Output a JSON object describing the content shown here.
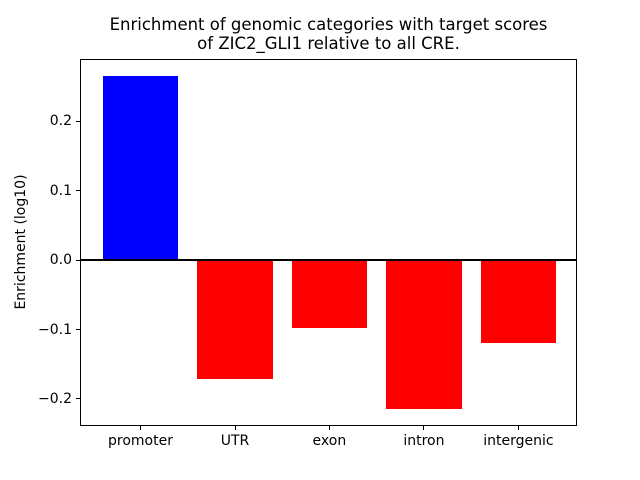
{
  "figure": {
    "background": "#ffffff",
    "title_line1": "Enrichment of genomic categories with target scores",
    "title_line2": "of ZIC2_GLI1 relative to all CRE.",
    "ylabel": "Enrichment (log10)"
  },
  "chart_data": {
    "type": "bar",
    "title": "Enrichment of genomic categories with target scores\nof ZIC2_GLI1 relative to all CRE.",
    "xlabel": "",
    "ylabel": "Enrichment (log10)",
    "categories": [
      "promoter",
      "UTR",
      "exon",
      "intron",
      "intergenic"
    ],
    "values": [
      0.266,
      -0.172,
      -0.098,
      -0.215,
      -0.12
    ],
    "bar_colors": [
      "#0000ff",
      "#ff0000",
      "#ff0000",
      "#ff0000",
      "#ff0000"
    ],
    "positive_color": "#0000ff",
    "negative_color": "#ff0000",
    "yticks": [
      -0.2,
      -0.1,
      0.0,
      0.1,
      0.2
    ],
    "ytick_labels": [
      "−0.2",
      "−0.1",
      "0.0",
      "0.1",
      "0.2"
    ],
    "ylim": [
      -0.239,
      0.29
    ],
    "xlim": [
      -0.64,
      4.62
    ],
    "bar_width": 0.8,
    "grid": false,
    "legend": null,
    "zero_line": true,
    "zero_line_color": "#000000",
    "spine_color": "#000000"
  }
}
